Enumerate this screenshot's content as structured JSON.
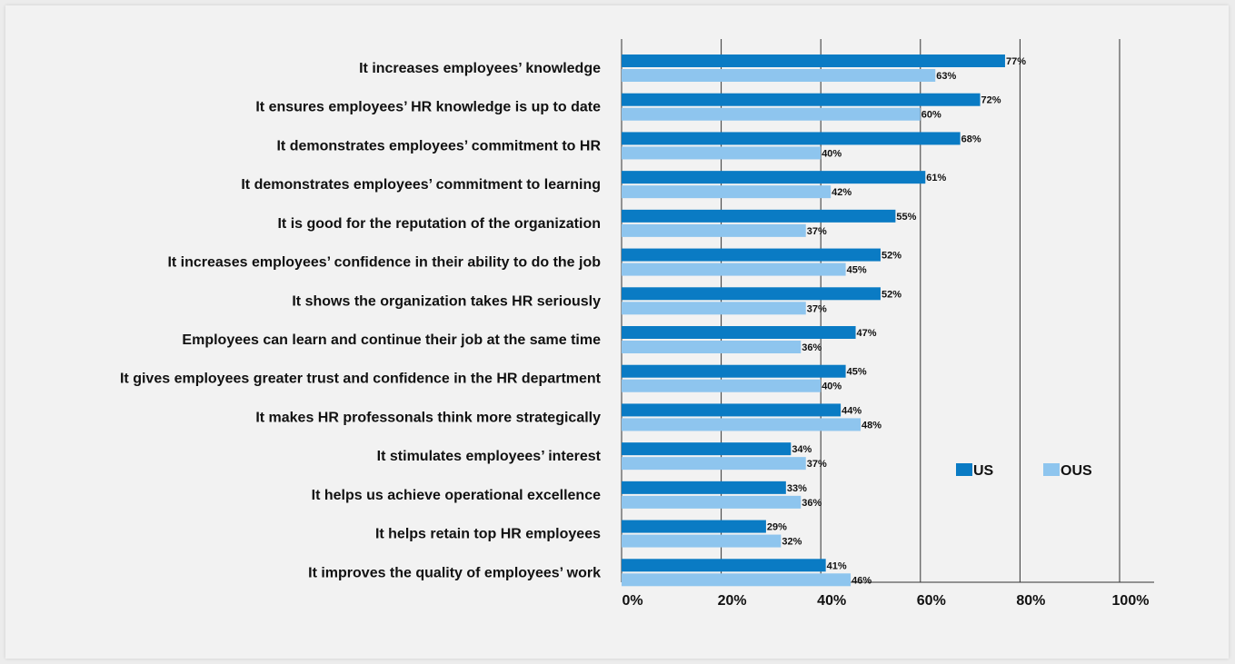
{
  "chart_data": {
    "type": "bar",
    "orientation": "horizontal",
    "categories": [
      "It increases employees’ knowledge",
      "It ensures employees’ HR knowledge is up to date",
      "It demonstrates employees’ commitment to HR",
      "It demonstrates employees’ commitment to learning",
      "It is good for the reputation of the organization",
      "It increases employees’ confidence in their ability to do the job",
      "It shows the organization takes HR seriously",
      "Employees can learn and continue their job at the same time",
      "It gives employees greater trust and confidence in the HR department",
      "It makes HR professonals think more strategically",
      "It stimulates employees’ interest",
      "It helps us achieve operational excellence",
      "It helps retain top HR employees",
      "It improves the quality of employees’ work"
    ],
    "series": [
      {
        "name": "US",
        "color": "#0a7bc4",
        "values": [
          77,
          72,
          68,
          61,
          55,
          52,
          52,
          47,
          45,
          44,
          34,
          33,
          29,
          41
        ]
      },
      {
        "name": "OUS",
        "color": "#8ec5ee",
        "values": [
          63,
          60,
          40,
          42,
          37,
          45,
          37,
          36,
          40,
          48,
          37,
          36,
          32,
          46
        ]
      }
    ],
    "value_suffix": "%",
    "xlim": [
      0,
      100
    ],
    "xticks": [
      "0%",
      "20%",
      "40%",
      "60%",
      "80%",
      "100%"
    ],
    "grid": true,
    "legend_position": "right"
  }
}
